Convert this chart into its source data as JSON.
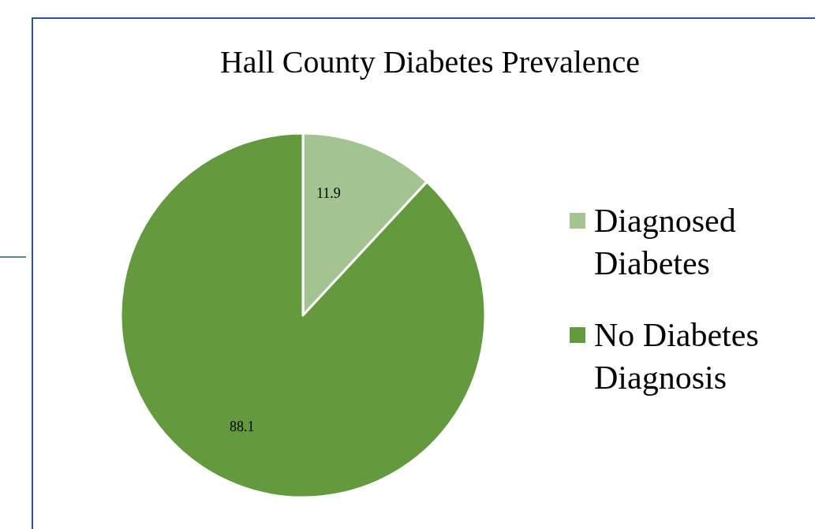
{
  "chart_data": {
    "type": "pie",
    "title": "Hall County Diabetes Prevalence",
    "categories": [
      "Diagnosed Diabetes",
      "No Diabetes Diagnosis"
    ],
    "values": [
      11.9,
      88.1
    ],
    "colors": [
      "#a3c491",
      "#639a3e"
    ],
    "data_labels": true,
    "legend": "right"
  }
}
